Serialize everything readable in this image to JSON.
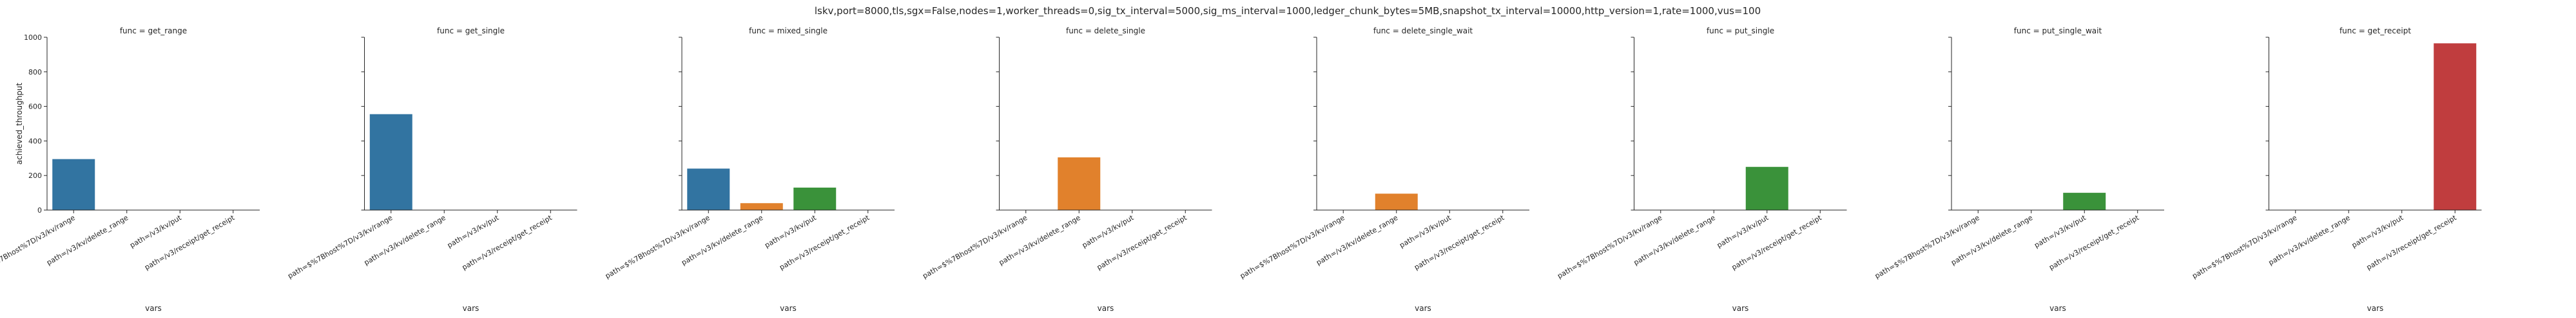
{
  "chart_data": {
    "type": "bar",
    "title": "lskv,port=8000,tls,sgx=False,nodes=1,worker_threads=0,sig_tx_interval=5000,sig_ms_interval=1000,ledger_chunk_bytes=5MB,snapshot_tx_interval=10000,http_version=1,rate=1000,vus=100",
    "xlabel": "vars",
    "ylabel": "achieved_throughput",
    "ylim": [
      0,
      1000
    ],
    "yticks": [
      0,
      200,
      400,
      600,
      800,
      1000
    ],
    "grid": false,
    "legend": "none",
    "categories": [
      "path=$%7Bhost%7D/v3/kv/range",
      "path=/v3/kv/delete_range",
      "path=/v3/kv/put",
      "path=/v3/receipt/get_receipt"
    ],
    "category_colors": [
      "#3274a1",
      "#e1812c",
      "#3a923a",
      "#c03d3e"
    ],
    "panels": [
      {
        "title": "func = get_range",
        "values": [
          295,
          null,
          null,
          null
        ]
      },
      {
        "title": "func = get_single",
        "values": [
          555,
          null,
          null,
          null
        ]
      },
      {
        "title": "func = mixed_single",
        "values": [
          240,
          40,
          130,
          null
        ]
      },
      {
        "title": "func = delete_single",
        "values": [
          null,
          305,
          null,
          null
        ]
      },
      {
        "title": "func = delete_single_wait",
        "values": [
          null,
          95,
          null,
          null
        ]
      },
      {
        "title": "func = put_single",
        "values": [
          null,
          null,
          250,
          null
        ]
      },
      {
        "title": "func = put_single_wait",
        "values": [
          null,
          null,
          100,
          null
        ]
      },
      {
        "title": "func = get_receipt",
        "values": [
          null,
          null,
          null,
          965
        ]
      }
    ]
  }
}
